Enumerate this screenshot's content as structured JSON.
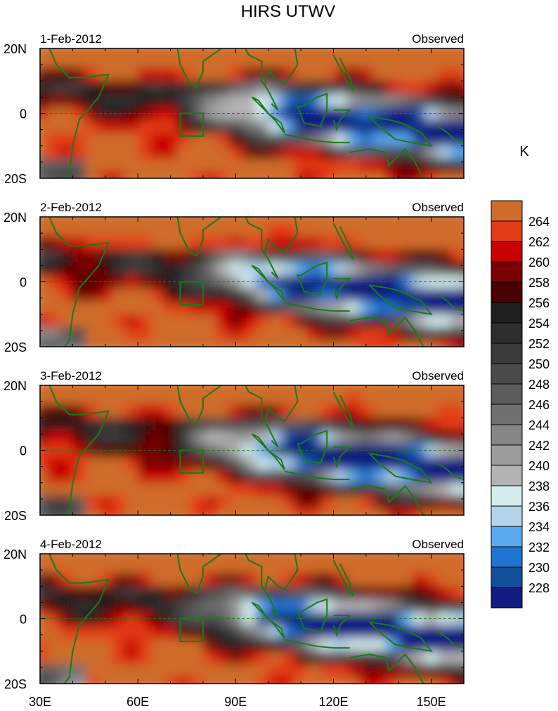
{
  "figure": {
    "title": "HIRS UTWV",
    "units": "K"
  },
  "panels": [
    {
      "date": "1-Feb-2012",
      "label": "Observed"
    },
    {
      "date": "2-Feb-2012",
      "label": "Observed"
    },
    {
      "date": "3-Feb-2012",
      "label": "Observed"
    },
    {
      "date": "4-Feb-2012",
      "label": "Observed"
    }
  ],
  "lat_ticks": [
    "20N",
    "0",
    "20S"
  ],
  "lon_ticks": [
    "30E",
    "60E",
    "90E",
    "120E",
    "150E"
  ],
  "colorbar": {
    "labels": [
      "264",
      "262",
      "260",
      "258",
      "256",
      "254",
      "252",
      "250",
      "248",
      "246",
      "244",
      "242",
      "240",
      "238",
      "236",
      "234",
      "232",
      "230",
      "228"
    ],
    "colors": [
      "#cf6c2a",
      "#e33b16",
      "#c80000",
      "#780000",
      "#4a0000",
      "#1e1e1e",
      "#2d2d2d",
      "#3a3a3a",
      "#4a4a4a",
      "#5c5c5c",
      "#707070",
      "#868686",
      "#9c9c9c",
      "#b3b3b3",
      "#d5eded",
      "#b3d4ea",
      "#5aaaf0",
      "#1e74d2",
      "#10509a",
      "#111c80"
    ]
  },
  "chart_data": {
    "type": "heatmap",
    "title": "HIRS UTWV",
    "colorbar_label": "K",
    "lon_range": [
      30,
      160
    ],
    "lat_range": [
      -20,
      20
    ],
    "x_ticks": [
      "30E",
      "60E",
      "90E",
      "120E",
      "150E"
    ],
    "y_ticks": [
      "20N",
      "0",
      "20S"
    ],
    "levels": [
      228,
      230,
      232,
      234,
      236,
      238,
      240,
      242,
      244,
      246,
      248,
      250,
      252,
      254,
      256,
      258,
      260,
      262,
      264
    ],
    "panels": [
      "1-Feb-2012",
      "2-Feb-2012",
      "3-Feb-2012",
      "4-Feb-2012"
    ]
  }
}
